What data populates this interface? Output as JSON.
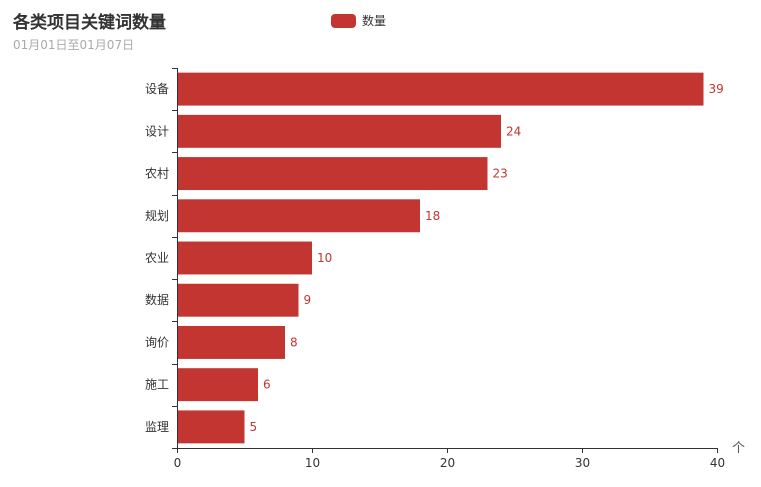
{
  "chart_data": {
    "type": "bar",
    "orientation": "horizontal",
    "title": "各类项目关键词数量",
    "subtitle": "01月01日至01月07日",
    "categories": [
      "设备",
      "设计",
      "农村",
      "规划",
      "农业",
      "数据",
      "询价",
      "施工",
      "监理"
    ],
    "series": [
      {
        "name": "数量",
        "values": [
          39,
          24,
          23,
          18,
          10,
          9,
          8,
          6,
          5
        ]
      }
    ],
    "xlim": [
      0,
      40
    ],
    "x_ticks": [
      "0",
      "10",
      "20",
      "30",
      "40"
    ],
    "xlabel": "个",
    "ylabel": "",
    "grid": false,
    "legend_position": "top-center",
    "bar_color": "#c23531"
  }
}
